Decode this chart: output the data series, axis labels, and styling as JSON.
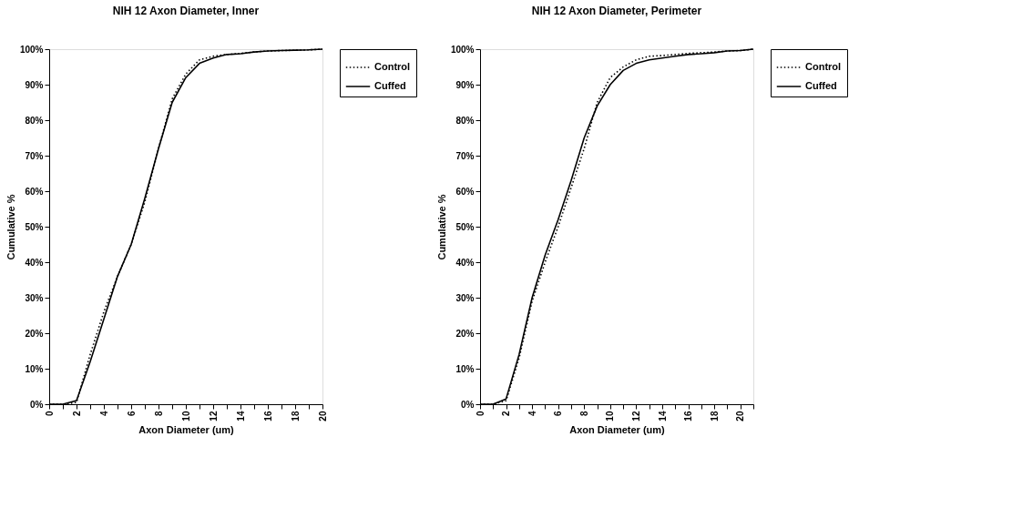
{
  "chart_data": [
    {
      "type": "line",
      "title": "NIH 12 Axon Diameter, Inner",
      "xlabel": "Axon Diameter (um)",
      "ylabel": "Cumulative %",
      "x": [
        0,
        1,
        2,
        3,
        4,
        5,
        6,
        7,
        8,
        9,
        10,
        11,
        12,
        13,
        14,
        15,
        16,
        17,
        18,
        19,
        20
      ],
      "series": [
        {
          "name": "Control",
          "color": "#000000",
          "line_style": "dotted",
          "values": [
            0,
            0,
            0.5,
            14,
            26,
            36,
            45,
            57,
            72,
            86,
            93,
            97,
            98,
            98.5,
            98.8,
            99.2,
            99.5,
            99.6,
            99.7,
            99.8,
            100
          ]
        },
        {
          "name": "Cuffed",
          "color": "#000000",
          "line_style": "solid",
          "values": [
            0,
            0,
            1,
            12,
            24,
            36,
            45,
            58,
            72,
            85,
            92,
            96,
            97.5,
            98.5,
            98.7,
            99.2,
            99.5,
            99.6,
            99.7,
            99.8,
            100
          ]
        }
      ],
      "xlim": [
        0,
        20
      ],
      "xticks": [
        0,
        {
          "value": 1,
          "label": null
        },
        2,
        {
          "value": 3,
          "label": null
        },
        4,
        {
          "value": 5,
          "label": null
        },
        6,
        {
          "value": 7,
          "label": null
        },
        8,
        {
          "value": 9,
          "label": null
        },
        10,
        {
          "value": 11,
          "label": null
        },
        12,
        {
          "value": 13,
          "label": null
        },
        14,
        {
          "value": 15,
          "label": null
        },
        16,
        {
          "value": 17,
          "label": null
        },
        18,
        {
          "value": 19,
          "label": null
        },
        20
      ],
      "ylim": [
        0,
        100
      ],
      "yticks": [
        {
          "value": 0,
          "label": "0%"
        },
        {
          "value": 10,
          "label": "10%"
        },
        {
          "value": 20,
          "label": "20%"
        },
        {
          "value": 30,
          "label": "30%"
        },
        {
          "value": 40,
          "label": "40%"
        },
        {
          "value": 50,
          "label": "50%"
        },
        {
          "value": 60,
          "label": "60%"
        },
        {
          "value": 70,
          "label": "70%"
        },
        {
          "value": 80,
          "label": "80%"
        },
        {
          "value": 90,
          "label": "90%"
        },
        {
          "value": 100,
          "label": "100%"
        }
      ],
      "grid": false,
      "legend": "right",
      "marker": "none"
    },
    {
      "type": "line",
      "title": "NIH 12 Axon Diameter, Perimeter",
      "xlabel": "Axon Diameter (um)",
      "ylabel": "Cumulative %",
      "x": [
        0,
        1,
        2,
        3,
        4,
        5,
        6,
        7,
        8,
        9,
        10,
        11,
        12,
        13,
        14,
        15,
        16,
        17,
        18,
        19,
        20,
        21
      ],
      "series": [
        {
          "name": "Control",
          "color": "#000000",
          "line_style": "dotted",
          "values": [
            0,
            0,
            1,
            13,
            29,
            40,
            50,
            61,
            72,
            85,
            92,
            95,
            97,
            98,
            98.2,
            98.5,
            98.8,
            99,
            99.2,
            99.5,
            99.6,
            100
          ]
        },
        {
          "name": "Cuffed",
          "color": "#000000",
          "line_style": "solid",
          "values": [
            0,
            0,
            1.5,
            14,
            30,
            42,
            52,
            63,
            75,
            84,
            90,
            94,
            96,
            97,
            97.5,
            98,
            98.5,
            98.7,
            99,
            99.5,
            99.6,
            100
          ]
        }
      ],
      "xlim": [
        0,
        21
      ],
      "xticks": [
        0,
        {
          "value": 1,
          "label": null
        },
        2,
        {
          "value": 3,
          "label": null
        },
        4,
        {
          "value": 5,
          "label": null
        },
        6,
        {
          "value": 7,
          "label": null
        },
        8,
        {
          "value": 9,
          "label": null
        },
        10,
        {
          "value": 11,
          "label": null
        },
        12,
        {
          "value": 13,
          "label": null
        },
        14,
        {
          "value": 15,
          "label": null
        },
        16,
        {
          "value": 17,
          "label": null
        },
        18,
        {
          "value": 19,
          "label": null
        },
        20,
        {
          "value": 21,
          "label": null
        }
      ],
      "ylim": [
        0,
        100
      ],
      "yticks": [
        {
          "value": 0,
          "label": "0%"
        },
        {
          "value": 10,
          "label": "10%"
        },
        {
          "value": 20,
          "label": "20%"
        },
        {
          "value": 30,
          "label": "30%"
        },
        {
          "value": 40,
          "label": "40%"
        },
        {
          "value": 50,
          "label": "50%"
        },
        {
          "value": 60,
          "label": "60%"
        },
        {
          "value": 70,
          "label": "70%"
        },
        {
          "value": 80,
          "label": "80%"
        },
        {
          "value": 90,
          "label": "90%"
        },
        {
          "value": 100,
          "label": "100%"
        }
      ],
      "grid": false,
      "legend": "right",
      "marker": "none"
    }
  ]
}
